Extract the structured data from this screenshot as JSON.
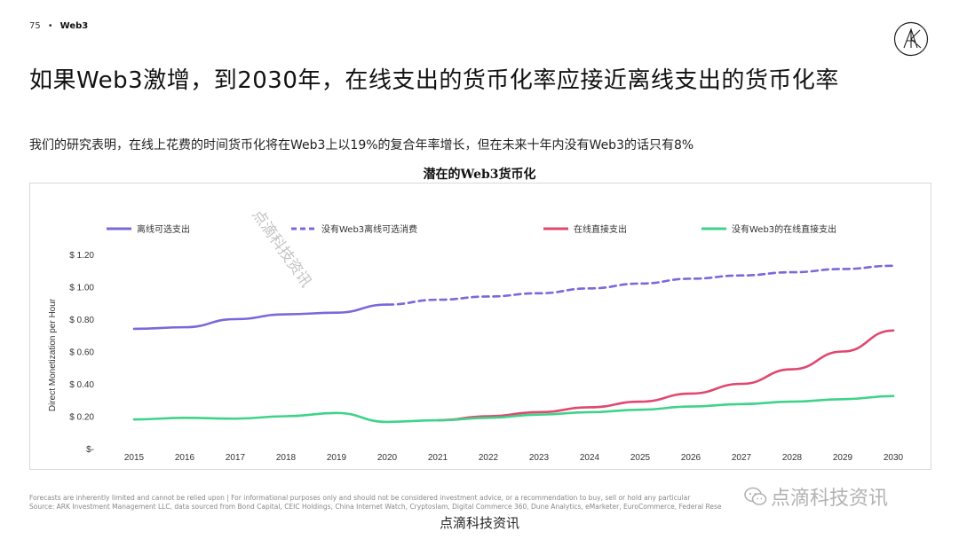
{
  "header": {
    "page_number": "75",
    "separator": "•",
    "section": "Web3"
  },
  "title": "如果Web3激增，到2030年，在线支出的货币化率应接近离线支出的货币化率",
  "subtitle": "我们的研究表明，在线上花费的时间货币化将在Web3上以19%的复合年率增长，但在未来十年内没有Web3的话只有8%",
  "colors": {
    "purple": "#7b68d9",
    "red": "#e0486f",
    "green": "#3fd38a"
  },
  "chart_data": {
    "type": "line",
    "title": "潜在的Web3货币化",
    "ylabel": "Direct Monetization per Hour",
    "xlabel": "",
    "ylim": [
      0,
      1.2
    ],
    "yticks": [
      {
        "value": 0,
        "label": "$-"
      },
      {
        "value": 0.2,
        "label": "$ 0.20"
      },
      {
        "value": 0.4,
        "label": "$ 0.40"
      },
      {
        "value": 0.6,
        "label": "$ 0.60"
      },
      {
        "value": 0.8,
        "label": "$ 0.80"
      },
      {
        "value": 1.0,
        "label": "$ 1.00"
      },
      {
        "value": 1.2,
        "label": "$ 1.20"
      }
    ],
    "x": [
      "2015",
      "2016",
      "2017",
      "2018",
      "2019",
      "2020",
      "2021",
      "2022",
      "2023",
      "2024",
      "2025",
      "2026",
      "2027",
      "2028",
      "2029",
      "2030"
    ],
    "series": [
      {
        "name": "离线可选支出",
        "color": "#7b68d9",
        "dash": false,
        "values": [
          0.74,
          0.75,
          0.8,
          0.83,
          0.84,
          0.89,
          null,
          null,
          null,
          null,
          null,
          null,
          null,
          null,
          null,
          null
        ]
      },
      {
        "name": "没有Web3离线可选消费",
        "color": "#7b68d9",
        "dash": true,
        "values": [
          null,
          null,
          null,
          null,
          null,
          0.89,
          0.92,
          0.94,
          0.96,
          0.99,
          1.02,
          1.05,
          1.07,
          1.09,
          1.11,
          1.13
        ]
      },
      {
        "name": "在线直接支出",
        "color": "#e0486f",
        "dash": false,
        "values": [
          null,
          null,
          null,
          null,
          null,
          null,
          0.175,
          0.2,
          0.225,
          0.255,
          0.29,
          0.34,
          0.4,
          0.49,
          0.6,
          0.73
        ]
      },
      {
        "name": "没有Web3的在线直接支出",
        "color": "#3fd38a",
        "dash": false,
        "values": [
          0.18,
          0.19,
          0.185,
          0.2,
          0.22,
          0.165,
          0.175,
          0.19,
          0.21,
          0.225,
          0.24,
          0.26,
          0.275,
          0.29,
          0.305,
          0.325
        ]
      }
    ]
  },
  "footer": {
    "line1": "Forecasts are inherently limited and cannot be relied upon | For informational purposes only and should not be considered investment advice, or a recommendation to buy, sell or hold any particular",
    "line2": "Source: ARK Investment Management LLC, data sourced from Bond Capital, CEIC Holdings, China Internet Watch, Cryptoslam, Digital Commerce 360, Dune Analytics, eMarketer, EuroCommerce, Federal Rese"
  },
  "watermark": {
    "diagonal": "点滴科技资讯",
    "corner": "点滴科技资讯",
    "bottom": "点滴科技资讯"
  }
}
